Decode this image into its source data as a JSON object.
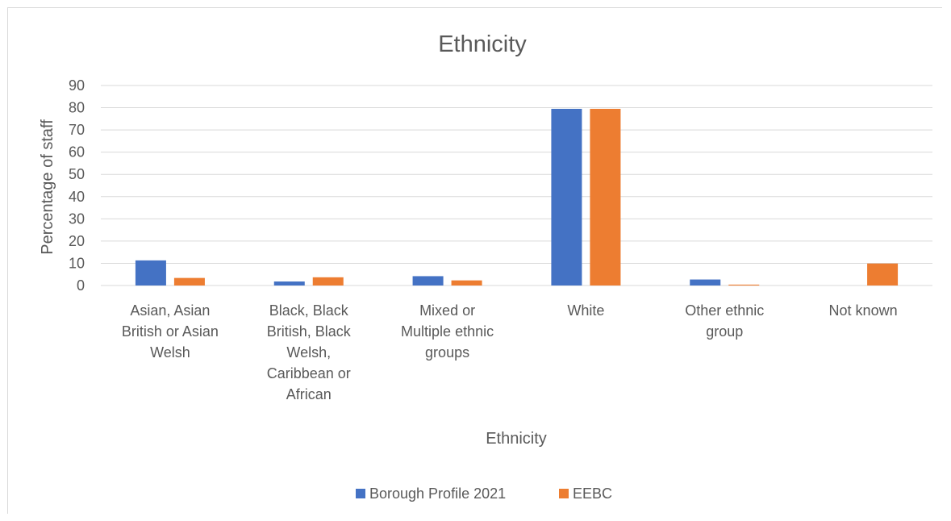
{
  "chart_data": {
    "type": "bar",
    "title": "Ethnicity",
    "xlabel": "Ethnicity",
    "ylabel": "Percentage of staff",
    "ylim": [
      0,
      90
    ],
    "yticks": [
      0,
      10,
      20,
      30,
      40,
      50,
      60,
      70,
      80,
      90
    ],
    "grid": true,
    "legend_position": "bottom",
    "categories": [
      [
        "Asian, Asian",
        "British or Asian",
        "Welsh"
      ],
      [
        "Black, Black",
        "British, Black",
        "Welsh,",
        "Caribbean or",
        "African"
      ],
      [
        "Mixed or",
        "Multiple ethnic",
        "groups"
      ],
      [
        "White"
      ],
      [
        "Other ethnic",
        "group"
      ],
      [
        "Not known"
      ]
    ],
    "series": [
      {
        "name": "Borough Profile 2021",
        "color": "#4472c4",
        "values": [
          11.3,
          1.8,
          4.2,
          79.5,
          2.7,
          0
        ]
      },
      {
        "name": "EEBC",
        "color": "#ed7d31",
        "values": [
          3.4,
          3.7,
          2.3,
          79.5,
          0.4,
          9.9
        ]
      }
    ]
  }
}
